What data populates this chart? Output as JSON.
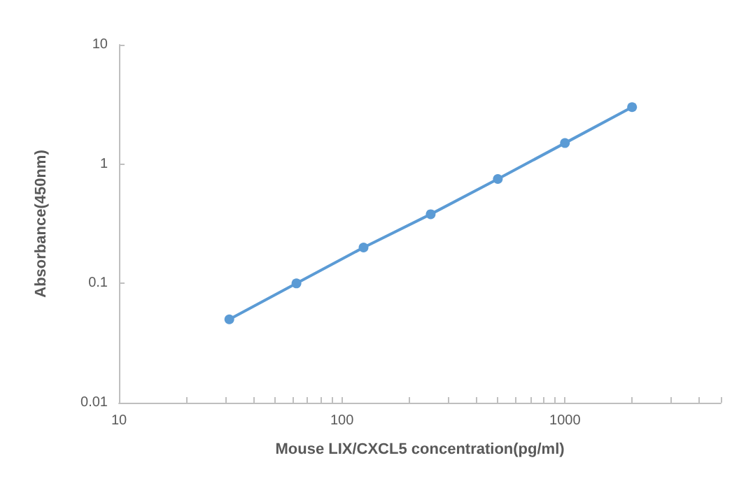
{
  "chart_data": {
    "type": "line",
    "xlabel": "Mouse LIX/CXCL5 concentration(pg/ml)",
    "ylabel": "Absorbance(450nm)",
    "x": [
      31.25,
      62.5,
      125,
      250,
      500,
      1000,
      2000
    ],
    "series": [
      {
        "color": "#5b9bd5",
        "values": [
          0.05,
          0.1,
          0.2,
          0.38,
          0.75,
          1.5,
          3.0
        ]
      }
    ],
    "log": "xy",
    "xlim": [
      10,
      5000
    ],
    "ylim": [
      0.01,
      10
    ],
    "xticks": [
      10,
      {
        "value": 20,
        "label": null
      },
      {
        "value": 30,
        "label": null
      },
      {
        "value": 40,
        "label": null
      },
      {
        "value": 50,
        "label": null
      },
      {
        "value": 60,
        "label": null
      },
      {
        "value": 70,
        "label": null
      },
      {
        "value": 80,
        "label": null
      },
      {
        "value": 90,
        "label": null
      },
      100,
      {
        "value": 200,
        "label": null
      },
      {
        "value": 300,
        "label": null
      },
      {
        "value": 400,
        "label": null
      },
      {
        "value": 500,
        "label": null
      },
      {
        "value": 600,
        "label": null
      },
      {
        "value": 700,
        "label": null
      },
      {
        "value": 800,
        "label": null
      },
      {
        "value": 900,
        "label": null
      },
      1000,
      {
        "value": 2000,
        "label": null
      },
      {
        "value": 3000,
        "label": null
      },
      {
        "value": 4000,
        "label": null
      },
      {
        "value": 5000,
        "label": null
      }
    ],
    "yticks": [
      0.01,
      0.1,
      1,
      10
    ],
    "grid": false,
    "marker": "circle",
    "line_style": "solid"
  }
}
